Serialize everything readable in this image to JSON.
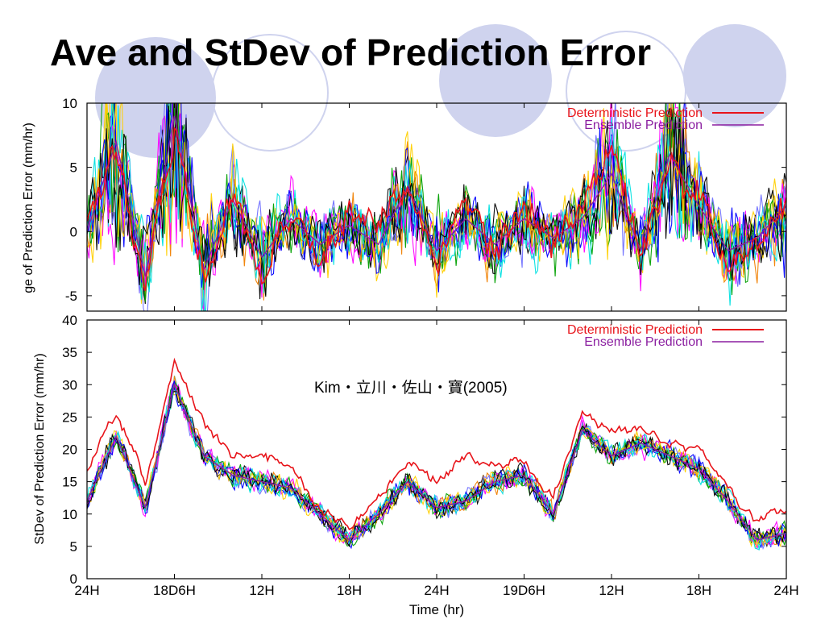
{
  "slide": {
    "title": "Ave and StDev of Prediction Error",
    "citation": "Kim・立川・佐山・寶(2005)"
  },
  "colors": {
    "deterministic": "#e8141a",
    "ensemble": "#8b1fa0",
    "member_palette": [
      "#ff00ff",
      "#00a000",
      "#0000ff",
      "#ffd000",
      "#00e0e0",
      "#000000",
      "#f08000",
      "#7070ff"
    ],
    "decoration": "#cfd3ee"
  },
  "chart_data": [
    {
      "type": "line",
      "ylabel": "ge of Prediction Error (mm/hr)",
      "xlabel": "",
      "ylim": [
        -6.2,
        10
      ],
      "yticks": [
        10,
        5,
        0,
        -5
      ],
      "x_tick_labels": [
        "24H",
        "18D6H",
        "12H",
        "18H",
        "24H",
        "19D6H",
        "12H",
        "18H",
        "24H"
      ],
      "legend_position": "top-right",
      "series": [
        {
          "name": "Deterministic Prediction",
          "x": [
            0,
            2,
            4,
            6,
            8,
            10,
            12,
            14,
            16,
            18,
            20,
            22,
            24,
            26,
            28,
            30,
            32,
            34,
            36,
            38,
            40,
            42,
            44,
            46,
            48
          ],
          "values": [
            0.5,
            6.5,
            -4.5,
            8.5,
            -4,
            3,
            -3,
            1.5,
            -1.5,
            1,
            0.5,
            3.5,
            -2,
            2,
            -1.5,
            2,
            -1,
            1.5,
            7.5,
            -2,
            5.5,
            3,
            -3.5,
            -1,
            2
          ]
        },
        {
          "name": "Ensemble Prediction",
          "x": [
            0,
            2,
            4,
            6,
            8,
            10,
            12,
            14,
            16,
            18,
            20,
            22,
            24,
            26,
            28,
            30,
            32,
            34,
            36,
            38,
            40,
            42,
            44,
            46,
            48
          ],
          "values": [
            0,
            7,
            -3.5,
            9,
            -3,
            2.5,
            -2,
            1,
            -1,
            0.5,
            -1,
            3.5,
            -1.5,
            1,
            -1,
            1,
            -0.5,
            1,
            4.5,
            -1.5,
            6,
            2,
            -1.5,
            -0.5,
            2
          ]
        }
      ]
    },
    {
      "type": "line",
      "ylabel": "StDev of Prediction Error (mm/hr)",
      "xlabel": "Time (hr)",
      "ylim": [
        0,
        40
      ],
      "yticks": [
        40,
        35,
        30,
        25,
        20,
        15,
        10,
        5,
        0
      ],
      "x_tick_labels": [
        "24H",
        "18D6H",
        "12H",
        "18H",
        "24H",
        "19D6H",
        "12H",
        "18H",
        "24H"
      ],
      "legend_position": "top-right",
      "series": [
        {
          "name": "Deterministic Prediction",
          "x": [
            0,
            2,
            4,
            6,
            8,
            10,
            12,
            14,
            16,
            18,
            20,
            22,
            24,
            26,
            28,
            30,
            32,
            34,
            36,
            38,
            40,
            42,
            44,
            46,
            48
          ],
          "values": [
            17,
            26,
            15,
            34,
            24,
            19,
            19,
            17,
            11,
            8,
            12,
            18,
            15,
            19,
            17,
            18,
            12,
            26,
            23,
            23,
            21,
            20,
            14,
            9,
            11
          ]
        },
        {
          "name": "Ensemble Prediction",
          "x": [
            0,
            2,
            4,
            6,
            8,
            10,
            12,
            14,
            16,
            18,
            20,
            22,
            24,
            26,
            28,
            30,
            32,
            34,
            36,
            38,
            40,
            42,
            44,
            46,
            48
          ],
          "values": [
            12,
            22,
            11,
            30,
            19,
            16,
            15,
            14,
            10,
            6,
            10,
            15,
            11,
            12,
            15,
            16,
            10,
            23,
            19,
            21,
            19,
            17,
            12,
            6,
            7
          ]
        }
      ]
    }
  ]
}
